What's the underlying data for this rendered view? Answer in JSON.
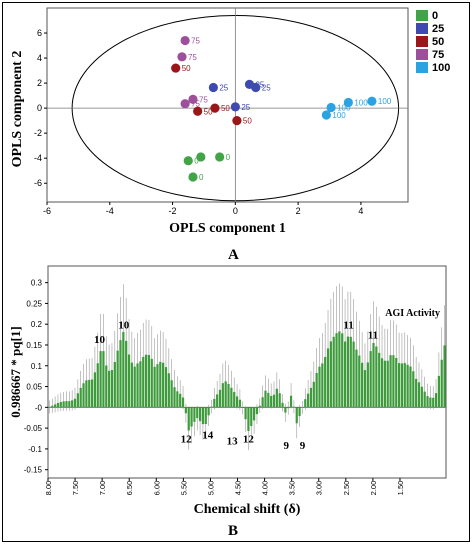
{
  "panelA": {
    "letter": "A",
    "chart_data": {
      "type": "scatter",
      "xlabel": "OPLS component 1",
      "ylabel": "OPLS component 2",
      "xlim": [
        -6,
        5.5
      ],
      "ylim": [
        -7.5,
        8
      ],
      "xticks": [
        -6,
        -4,
        -2,
        0,
        2,
        4
      ],
      "yticks": [
        -6,
        -4,
        -2,
        0,
        2,
        4,
        6
      ],
      "ellipse": "origin-centered",
      "legend": [
        "0",
        "25",
        "50",
        "75",
        "100"
      ],
      "legend_position": "right",
      "series": [
        {
          "name": "0",
          "color": "#41a447",
          "points": [
            {
              "x": -1.5,
              "y": -4.2,
              "label": "0"
            },
            {
              "x": -1.1,
              "y": -3.9,
              "label": ""
            },
            {
              "x": -0.5,
              "y": -3.9,
              "label": "0"
            },
            {
              "x": -1.35,
              "y": -5.5,
              "label": "0"
            }
          ]
        },
        {
          "name": "25",
          "color": "#3e4ab0",
          "points": [
            {
              "x": -0.7,
              "y": 1.65,
              "label": "25"
            },
            {
              "x": 0.45,
              "y": 1.9,
              "label": "25"
            },
            {
              "x": 0.65,
              "y": 1.65,
              "label": "25"
            },
            {
              "x": 0.0,
              "y": 0.1,
              "label": "25"
            }
          ]
        },
        {
          "name": "50",
          "color": "#9b1618",
          "points": [
            {
              "x": -1.9,
              "y": 3.2,
              "label": "50"
            },
            {
              "x": -1.2,
              "y": -0.25,
              "label": "50"
            },
            {
              "x": -0.65,
              "y": 0.0,
              "label": "50"
            },
            {
              "x": 0.05,
              "y": -1.0,
              "label": "50"
            }
          ]
        },
        {
          "name": "75",
          "color": "#9d4f9c",
          "points": [
            {
              "x": -1.6,
              "y": 5.4,
              "label": "75"
            },
            {
              "x": -1.7,
              "y": 4.1,
              "label": "75"
            },
            {
              "x": -1.6,
              "y": 0.35,
              "label": "75"
            },
            {
              "x": -1.35,
              "y": 0.7,
              "label": "75"
            }
          ]
        },
        {
          "name": "100",
          "color": "#2ba3e3",
          "points": [
            {
              "x": 2.9,
              "y": -0.55,
              "label": "100"
            },
            {
              "x": 3.05,
              "y": 0.05,
              "label": "100"
            },
            {
              "x": 3.6,
              "y": 0.45,
              "label": "100"
            },
            {
              "x": 4.35,
              "y": 0.55,
              "label": "100"
            }
          ]
        }
      ]
    }
  },
  "panelB": {
    "letter": "B",
    "chart_data": {
      "type": "bar",
      "title": "AGI Activity",
      "xlabel": "Chemical shift (δ)",
      "ylabel": "0.986667 * pq[1]",
      "ylim": [
        -0.17,
        0.34
      ],
      "yticks": [
        -0.15,
        -0.1,
        -0.05,
        0,
        0.05,
        0.1,
        0.15,
        0.2,
        0.25,
        0.3
      ],
      "ytick_labels": [
        "-0.15",
        "-0.1",
        "-0.05",
        "-0",
        "0.05",
        "0.1",
        "0.15",
        "0.2",
        "0.25",
        "0.3"
      ],
      "xlim": [
        8.0,
        0.65
      ],
      "xticks": [
        8.0,
        7.5,
        7.0,
        6.5,
        6.0,
        5.5,
        5.0,
        4.5,
        4.0,
        3.5,
        3.0,
        2.5,
        2.0,
        1.5
      ],
      "xtick_labels": [
        "8.00",
        "7.50",
        "7.00",
        "6.50",
        "6.00",
        "5.50",
        "5.00",
        "4.50",
        "4.00",
        "3.50",
        "3.00",
        "2.50",
        "2.00",
        "1.50"
      ],
      "bar_color": "#3e9b3c",
      "profile": [
        [
          8.0,
          0.0
        ],
        [
          7.8,
          0.01
        ],
        [
          7.5,
          0.02
        ],
        [
          7.3,
          0.06
        ],
        [
          7.1,
          0.09
        ],
        [
          7.0,
          0.13
        ],
        [
          6.9,
          0.08
        ],
        [
          6.75,
          0.12
        ],
        [
          6.6,
          0.16
        ],
        [
          6.5,
          0.12
        ],
        [
          6.3,
          0.1
        ],
        [
          6.1,
          0.12
        ],
        [
          5.9,
          0.1
        ],
        [
          5.7,
          0.06
        ],
        [
          5.5,
          0.02
        ],
        [
          5.4,
          -0.05
        ],
        [
          5.25,
          -0.03
        ],
        [
          5.1,
          -0.04
        ],
        [
          4.9,
          0.03
        ],
        [
          4.75,
          0.06
        ],
        [
          4.6,
          0.04
        ],
        [
          4.45,
          0.02
        ],
        [
          4.3,
          -0.05
        ],
        [
          4.15,
          -0.02
        ],
        [
          4.0,
          0.04
        ],
        [
          3.85,
          0.02
        ],
        [
          3.75,
          0.05
        ],
        [
          3.6,
          -0.02
        ],
        [
          3.5,
          0.03
        ],
        [
          3.4,
          -0.04
        ],
        [
          3.25,
          0.02
        ],
        [
          3.1,
          0.05
        ],
        [
          2.9,
          0.13
        ],
        [
          2.7,
          0.15
        ],
        [
          2.55,
          0.19
        ],
        [
          2.45,
          0.17
        ],
        [
          2.3,
          0.12
        ],
        [
          2.15,
          0.1
        ],
        [
          2.0,
          0.14
        ],
        [
          1.85,
          0.11
        ],
        [
          1.7,
          0.13
        ],
        [
          1.5,
          0.09
        ],
        [
          1.35,
          0.12
        ],
        [
          1.2,
          0.06
        ],
        [
          1.0,
          0.03
        ],
        [
          0.85,
          0.02
        ],
        [
          0.7,
          0.12
        ],
        [
          0.65,
          0.16
        ]
      ],
      "annotations": [
        {
          "x": 7.05,
          "y": 0.155,
          "text": "10"
        },
        {
          "x": 6.6,
          "y": 0.19,
          "text": "10"
        },
        {
          "x": 5.45,
          "y": -0.085,
          "text": "12"
        },
        {
          "x": 5.05,
          "y": -0.075,
          "text": "14"
        },
        {
          "x": 4.6,
          "y": -0.09,
          "text": "13"
        },
        {
          "x": 4.3,
          "y": -0.085,
          "text": "12"
        },
        {
          "x": 3.6,
          "y": -0.1,
          "text": "9"
        },
        {
          "x": 3.3,
          "y": -0.1,
          "text": "9"
        },
        {
          "x": 2.45,
          "y": 0.19,
          "text": "11"
        },
        {
          "x": 2.0,
          "y": 0.165,
          "text": "11"
        }
      ]
    }
  }
}
